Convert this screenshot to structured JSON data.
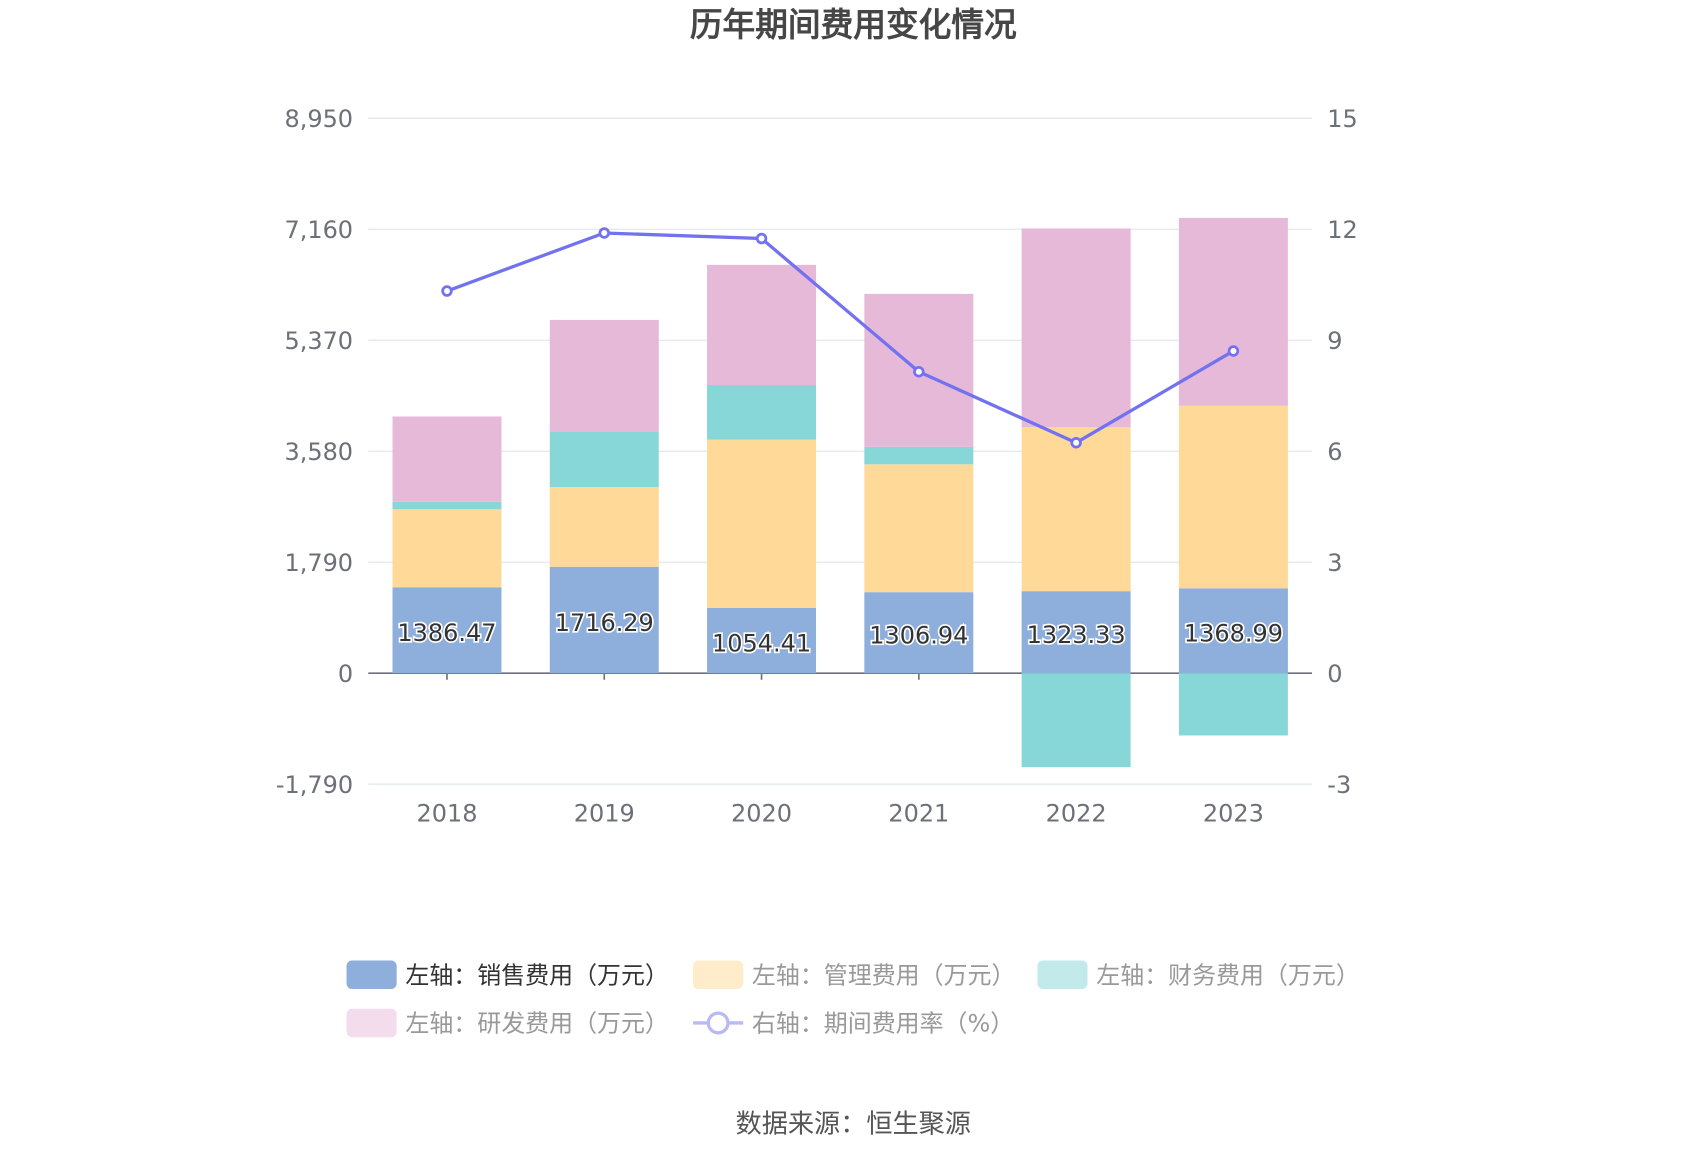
{
  "chart_data": {
    "type": "bar",
    "title": "历年期间费用变化情况",
    "categories": [
      "2018",
      "2019",
      "2020",
      "2021",
      "2022",
      "2023"
    ],
    "left_axis": {
      "ticks": [
        "-1,790",
        "0",
        "1,790",
        "3,580",
        "5,370",
        "7,160",
        "8,950"
      ],
      "ylim": [
        -1790,
        8950
      ]
    },
    "right_axis": {
      "ticks": [
        "-3",
        "0",
        "3",
        "6",
        "9",
        "12",
        "15"
      ],
      "ylim": [
        -3,
        15
      ]
    },
    "grid": true,
    "stacked": true,
    "legend_placement": "bottom",
    "series": [
      {
        "name": "左轴：销售费用（万元）",
        "type": "bar",
        "axis": "left",
        "color": "#8eaedc",
        "legend_color": "#8eaedc",
        "legend_text_color": "#333333",
        "values": [
          1386.47,
          1716.29,
          1054.41,
          1306.94,
          1323.33,
          1368.99
        ],
        "labels": [
          "1386.47",
          "1716.29",
          "1054.41",
          "1306.94",
          "1323.33",
          "1368.99"
        ]
      },
      {
        "name": "左轴：管理费用（万元）",
        "type": "bar",
        "axis": "left",
        "color": "#fed998",
        "legend_color": "#ffecca",
        "legend_text_color": "#999999",
        "values": [
          1257,
          1286,
          2713,
          2062,
          2643,
          2943
        ]
      },
      {
        "name": "左轴：财务费用（万元）",
        "type": "bar",
        "axis": "left",
        "color": "#87d6d8",
        "legend_color": "#c3eaeb",
        "legend_text_color": "#999999",
        "values": [
          123,
          899,
          881,
          282,
          -1515,
          -1004
        ]
      },
      {
        "name": "左轴：研发费用（万元）",
        "type": "bar",
        "axis": "left",
        "color": "#e7b9d9",
        "legend_color": "#f3dcec",
        "legend_text_color": "#999999",
        "values": [
          1374,
          1797,
          1938,
          2467,
          3207,
          3031
        ]
      },
      {
        "name": "右轴：期间费用率（%）",
        "type": "line",
        "axis": "right",
        "color": "#7272f0",
        "legend_color": "#b9b9f7",
        "legend_text_color": "#999999",
        "values": [
          10.33,
          11.9,
          11.75,
          8.15,
          6.23,
          8.71
        ]
      }
    ]
  },
  "source": "数据来源：恒生聚源"
}
